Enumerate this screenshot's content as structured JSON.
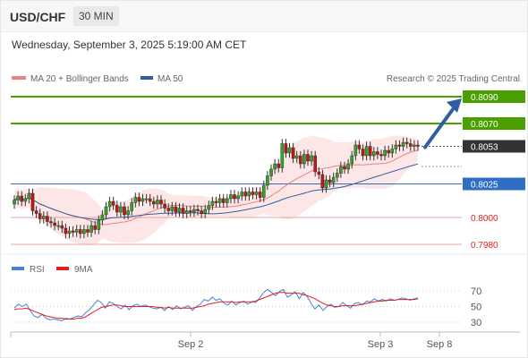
{
  "header": {
    "symbol": "USD/CHF",
    "timeframe": "30 MIN"
  },
  "date_line": "Wednesday, September 3, 2025 5:19:00 AM CET",
  "legend": {
    "ma20": {
      "label": "MA 20 + Bollinger Bands",
      "color": "#f08080"
    },
    "ma50": {
      "label": "MA 50",
      "color": "#2e5fa3"
    },
    "credit": "Research © 2025 Trading Central"
  },
  "rsi_legend": {
    "rsi": {
      "label": "RSI",
      "color": "#4a7fd6"
    },
    "ma9": {
      "label": "9MA",
      "color": "#e02020"
    }
  },
  "chart_data": [
    {
      "type": "candlestick",
      "title": "",
      "ylim": [
        0.7963,
        0.8104
      ],
      "x_ticks": [
        "Sep 2",
        "Sep 3",
        "Sep 8"
      ],
      "levels": [
        {
          "value": "0.8090",
          "kind": "resistance",
          "color": "#4aa000"
        },
        {
          "value": "0.8070",
          "kind": "resistance",
          "color": "#4aa000"
        },
        {
          "value": "0.8053",
          "kind": "current",
          "color": "#333333"
        },
        {
          "value": "0.8025",
          "kind": "pivot",
          "color": "#2e6fc4"
        },
        {
          "value": "0.8000",
          "kind": "support",
          "color": "#e02020"
        },
        {
          "value": "0.7980",
          "kind": "support",
          "color": "#e02020"
        }
      ],
      "closes": [
        0.8013,
        0.8016,
        0.8012,
        0.8014,
        0.8018,
        0.8005,
        0.8003,
        0.7999,
        0.8001,
        0.7997,
        0.7996,
        0.7994,
        0.7994,
        0.7992,
        0.7988,
        0.799,
        0.7989,
        0.7991,
        0.7988,
        0.7991,
        0.7989,
        0.7994,
        0.7991,
        0.7998,
        0.8002,
        0.8008,
        0.8012,
        0.8009,
        0.8004,
        0.8008,
        0.8002,
        0.8005,
        0.8011,
        0.8015,
        0.8012,
        0.8014,
        0.8014,
        0.8012,
        0.801,
        0.8013,
        0.801,
        0.8007,
        0.8005,
        0.8008,
        0.8004,
        0.8007,
        0.8003,
        0.8005,
        0.8004,
        0.8006,
        0.8005,
        0.8003,
        0.8006,
        0.8009,
        0.8012,
        0.8011,
        0.8014,
        0.8011,
        0.8014,
        0.8017,
        0.8014,
        0.8016,
        0.8019,
        0.8016,
        0.8019,
        0.8017,
        0.8019,
        0.8015,
        0.8024,
        0.8031,
        0.8036,
        0.804,
        0.8037,
        0.8055,
        0.8048,
        0.8052,
        0.8044,
        0.8046,
        0.804,
        0.8047,
        0.8042,
        0.8046,
        0.8034,
        0.8032,
        0.8022,
        0.8028,
        0.8026,
        0.803,
        0.8033,
        0.8038,
        0.8036,
        0.804,
        0.8046,
        0.8054,
        0.8051,
        0.8046,
        0.8053,
        0.8046,
        0.8049,
        0.8047,
        0.8046,
        0.805,
        0.8048,
        0.8051,
        0.8054,
        0.8053,
        0.8056,
        0.8055,
        0.8053,
        0.8054,
        0.8053
      ],
      "ma50_endpoints": [
        0.8017,
        0.8037
      ]
    },
    {
      "type": "line",
      "title": "RSI",
      "ylim": [
        20,
        80
      ],
      "y_ticks": [
        "70",
        "50",
        "30"
      ],
      "series": [
        {
          "name": "RSI",
          "values": [
            48,
            53,
            50,
            53,
            45,
            38,
            36,
            40,
            35,
            33,
            34,
            33,
            32,
            35,
            34,
            36,
            38,
            37,
            42,
            46,
            52,
            58,
            55,
            48,
            56,
            54,
            50,
            47,
            52,
            46,
            51,
            53,
            50,
            52,
            50,
            48,
            47,
            49,
            45,
            50,
            46,
            51,
            47,
            49,
            51,
            45,
            50,
            53,
            59,
            57,
            62,
            58,
            60,
            54,
            52,
            57,
            52,
            55,
            57,
            53,
            56,
            55,
            61,
            68,
            72,
            68,
            64,
            69,
            72,
            62,
            65,
            69,
            60,
            68,
            63,
            54,
            47,
            52,
            45,
            50,
            53,
            49,
            50,
            55,
            51,
            48,
            54,
            55,
            52,
            57,
            56,
            60,
            57,
            59,
            57,
            60,
            58,
            59,
            61,
            60,
            58,
            60,
            61
          ]
        },
        {
          "name": "9MA",
          "values": [
            46,
            47,
            47,
            48,
            46,
            44,
            42,
            40,
            38,
            37,
            36,
            35,
            35,
            34,
            34,
            34,
            35,
            35,
            37,
            40,
            43,
            46,
            49,
            50,
            51,
            52,
            52,
            51,
            50,
            50,
            50,
            50,
            50,
            50,
            50,
            50,
            49,
            49,
            48,
            49,
            48,
            48,
            48,
            48,
            48,
            48,
            49,
            50,
            51,
            53,
            54,
            55,
            56,
            56,
            56,
            56,
            55,
            56,
            56,
            56,
            56,
            57,
            59,
            61,
            63,
            65,
            67,
            68,
            68,
            67,
            67,
            67,
            67,
            65,
            64,
            62,
            60,
            57,
            54,
            52,
            51,
            50,
            50,
            51,
            51,
            51,
            51,
            52,
            53,
            54,
            55,
            56,
            57,
            57,
            58,
            58,
            58,
            59,
            59,
            59,
            59,
            59,
            60
          ]
        }
      ]
    }
  ]
}
